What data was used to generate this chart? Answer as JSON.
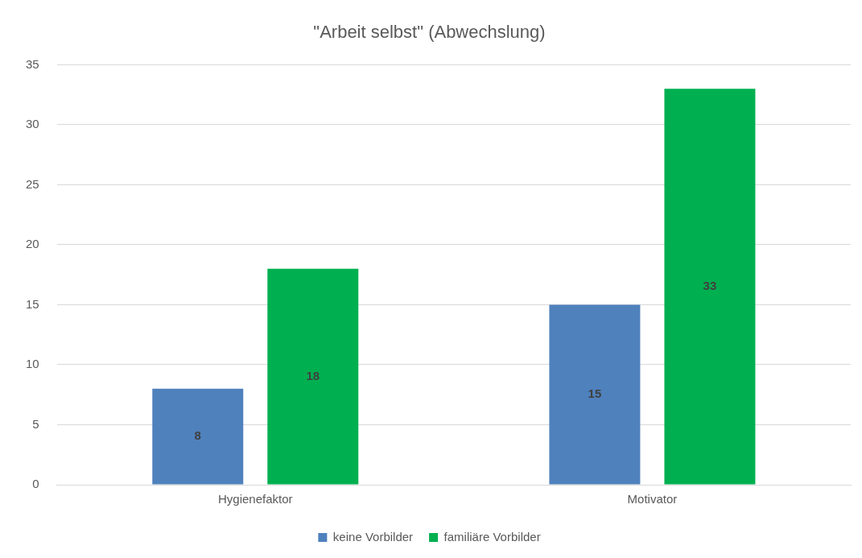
{
  "chart_data": {
    "type": "bar",
    "title": "\"Arbeit selbst\" (Abwechslung)",
    "categories": [
      "Hygienefaktor",
      "Motivator"
    ],
    "series": [
      {
        "name": "keine Vorbilder",
        "color": "#4f81bd",
        "values": [
          8,
          15
        ]
      },
      {
        "name": "familiäre Vorbilder",
        "color": "#00b050",
        "values": [
          18,
          33
        ]
      }
    ],
    "ylim": [
      0,
      35
    ],
    "yticks": [
      0,
      5,
      10,
      15,
      20,
      25,
      30,
      35
    ],
    "grid": "y",
    "legend": "bottom",
    "data_labels": true
  }
}
